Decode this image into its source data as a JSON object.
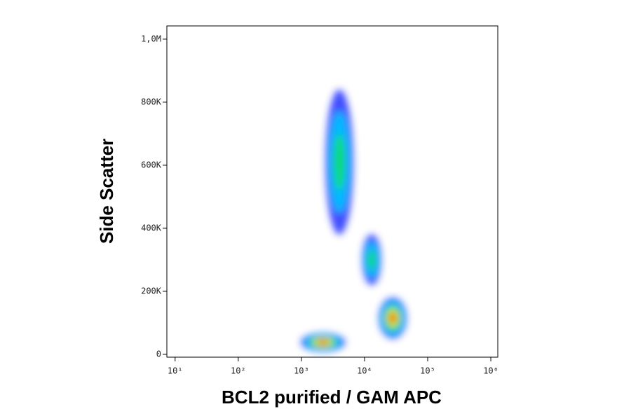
{
  "chart_data": {
    "type": "density",
    "x_label": "BCL2 purified / GAM APC",
    "y_label": "Side Scatter",
    "xscale": "log",
    "xlim": [
      7.4,
      1290000
    ],
    "ylim": [
      -9000,
      1042000
    ],
    "xticks": [
      {
        "value": 10,
        "label": "10¹"
      },
      {
        "value": 100,
        "label": "10²"
      },
      {
        "value": 1000,
        "label": "10³"
      },
      {
        "value": 10000,
        "label": "10⁴"
      },
      {
        "value": 100000,
        "label": "10⁵"
      },
      {
        "value": 1000000,
        "label": "10⁶"
      }
    ],
    "yticks": [
      0,
      {
        "value": 200000,
        "label": "200K"
      },
      {
        "value": 400000,
        "label": "400K"
      },
      {
        "value": 600000,
        "label": "600K"
      },
      {
        "value": 800000,
        "label": "800K"
      },
      {
        "value": 1000000,
        "label": "1,0M"
      }
    ],
    "palette": [
      "#1f2dff",
      "#00c8ff",
      "#10e060",
      "#f0f000",
      "#ff2400"
    ],
    "clusters": [
      {
        "x": 4000,
        "y": 610000,
        "sx": 0.22,
        "sy": 230000,
        "peak": 2
      },
      {
        "x": 13000,
        "y": 300000,
        "sx": 0.15,
        "sy": 80000,
        "peak": 2
      },
      {
        "x": 28000,
        "y": 115000,
        "sx": 0.22,
        "sy": 65000,
        "peak": 4
      },
      {
        "x": 2200,
        "y": 38000,
        "sx": 0.35,
        "sy": 30000,
        "peak": 4
      }
    ]
  }
}
